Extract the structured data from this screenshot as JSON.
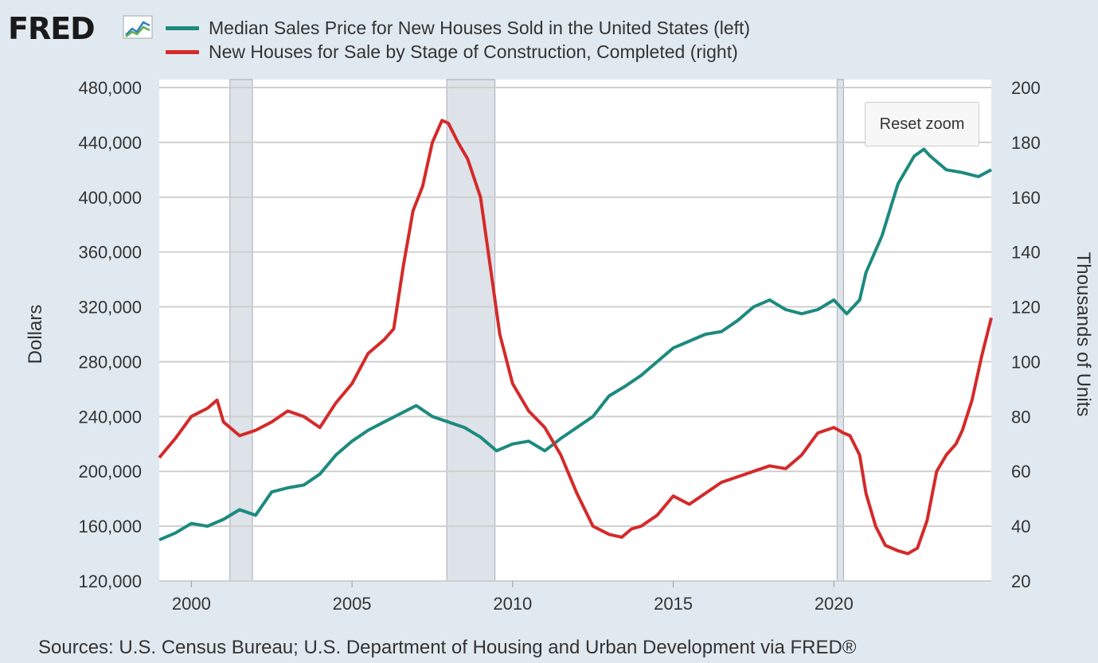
{
  "logo": {
    "text": "FRED",
    "mark": "fred-chart-logo-icon"
  },
  "legend": [
    {
      "label": "Median Sales Price for New Houses Sold in the United States (left)",
      "color": "#1d8a7e"
    },
    {
      "label": "New Houses for Sale by Stage of Construction, Completed (right)",
      "color": "#d42a2a"
    }
  ],
  "reset_zoom_label": "Reset zoom",
  "source": "Sources: U.S. Census Bureau; U.S. Department of Housing and Urban Development via FRED®",
  "chart_data": {
    "type": "line",
    "x_axis": {
      "range": [
        1999.0,
        2024.9
      ],
      "ticks": [
        "2000",
        "2005",
        "2010",
        "2015",
        "2020"
      ]
    },
    "y_left": {
      "label": "Dollars",
      "range": [
        120000,
        480000
      ],
      "ticks": [
        "120,000",
        "160,000",
        "200,000",
        "240,000",
        "280,000",
        "320,000",
        "360,000",
        "400,000",
        "440,000",
        "480,000"
      ]
    },
    "y_right": {
      "label": "Thousands of Units",
      "range": [
        20,
        200
      ],
      "ticks": [
        "20",
        "40",
        "60",
        "80",
        "100",
        "120",
        "140",
        "160",
        "180",
        "200"
      ]
    },
    "recessions": [
      [
        2001.2,
        2001.9
      ],
      [
        2007.95,
        2009.45
      ],
      [
        2020.1,
        2020.3
      ]
    ],
    "grid": true,
    "series": [
      {
        "name": "Median Sales Price for New Houses Sold in the United States (left)",
        "axis": "left",
        "color": "#1d8a7e",
        "points": [
          [
            1999.0,
            150000
          ],
          [
            1999.5,
            155000
          ],
          [
            2000.0,
            162000
          ],
          [
            2000.5,
            160000
          ],
          [
            2001.0,
            165000
          ],
          [
            2001.5,
            172000
          ],
          [
            2002.0,
            168000
          ],
          [
            2002.5,
            185000
          ],
          [
            2003.0,
            188000
          ],
          [
            2003.5,
            190000
          ],
          [
            2004.0,
            198000
          ],
          [
            2004.5,
            212000
          ],
          [
            2005.0,
            222000
          ],
          [
            2005.5,
            230000
          ],
          [
            2006.0,
            236000
          ],
          [
            2006.5,
            242000
          ],
          [
            2007.0,
            248000
          ],
          [
            2007.5,
            240000
          ],
          [
            2008.0,
            236000
          ],
          [
            2008.5,
            232000
          ],
          [
            2009.0,
            225000
          ],
          [
            2009.5,
            215000
          ],
          [
            2010.0,
            220000
          ],
          [
            2010.5,
            222000
          ],
          [
            2011.0,
            215000
          ],
          [
            2011.5,
            224000
          ],
          [
            2012.0,
            232000
          ],
          [
            2012.5,
            240000
          ],
          [
            2013.0,
            255000
          ],
          [
            2013.5,
            262000
          ],
          [
            2014.0,
            270000
          ],
          [
            2014.5,
            280000
          ],
          [
            2015.0,
            290000
          ],
          [
            2015.5,
            295000
          ],
          [
            2016.0,
            300000
          ],
          [
            2016.5,
            302000
          ],
          [
            2017.0,
            310000
          ],
          [
            2017.5,
            320000
          ],
          [
            2018.0,
            325000
          ],
          [
            2018.5,
            318000
          ],
          [
            2019.0,
            315000
          ],
          [
            2019.5,
            318000
          ],
          [
            2020.0,
            325000
          ],
          [
            2020.4,
            315000
          ],
          [
            2020.8,
            325000
          ],
          [
            2021.0,
            345000
          ],
          [
            2021.5,
            372000
          ],
          [
            2021.8,
            395000
          ],
          [
            2022.0,
            410000
          ],
          [
            2022.5,
            430000
          ],
          [
            2022.8,
            435000
          ],
          [
            2023.0,
            430000
          ],
          [
            2023.5,
            420000
          ],
          [
            2024.0,
            418000
          ],
          [
            2024.5,
            415000
          ],
          [
            2024.9,
            420000
          ]
        ]
      },
      {
        "name": "New Houses for Sale by Stage of Construction, Completed (right)",
        "axis": "right",
        "color": "#d42a2a",
        "points": [
          [
            1999.0,
            65
          ],
          [
            1999.5,
            72
          ],
          [
            2000.0,
            80
          ],
          [
            2000.5,
            83
          ],
          [
            2000.8,
            86
          ],
          [
            2001.0,
            78
          ],
          [
            2001.5,
            73
          ],
          [
            2002.0,
            75
          ],
          [
            2002.5,
            78
          ],
          [
            2003.0,
            82
          ],
          [
            2003.5,
            80
          ],
          [
            2004.0,
            76
          ],
          [
            2004.5,
            85
          ],
          [
            2005.0,
            92
          ],
          [
            2005.5,
            103
          ],
          [
            2006.0,
            108
          ],
          [
            2006.3,
            112
          ],
          [
            2006.6,
            135
          ],
          [
            2006.9,
            155
          ],
          [
            2007.2,
            164
          ],
          [
            2007.5,
            180
          ],
          [
            2007.8,
            188
          ],
          [
            2008.0,
            187
          ],
          [
            2008.3,
            180
          ],
          [
            2008.6,
            174
          ],
          [
            2009.0,
            160
          ],
          [
            2009.3,
            135
          ],
          [
            2009.6,
            110
          ],
          [
            2010.0,
            92
          ],
          [
            2010.5,
            82
          ],
          [
            2011.0,
            76
          ],
          [
            2011.5,
            66
          ],
          [
            2012.0,
            52
          ],
          [
            2012.5,
            40
          ],
          [
            2013.0,
            37
          ],
          [
            2013.4,
            36
          ],
          [
            2013.7,
            39
          ],
          [
            2014.0,
            40
          ],
          [
            2014.5,
            44
          ],
          [
            2015.0,
            51
          ],
          [
            2015.5,
            48
          ],
          [
            2016.0,
            52
          ],
          [
            2016.5,
            56
          ],
          [
            2017.0,
            58
          ],
          [
            2017.5,
            60
          ],
          [
            2018.0,
            62
          ],
          [
            2018.5,
            61
          ],
          [
            2019.0,
            66
          ],
          [
            2019.5,
            74
          ],
          [
            2020.0,
            76
          ],
          [
            2020.3,
            74
          ],
          [
            2020.5,
            73
          ],
          [
            2020.8,
            66
          ],
          [
            2021.0,
            52
          ],
          [
            2021.3,
            40
          ],
          [
            2021.6,
            33
          ],
          [
            2022.0,
            31
          ],
          [
            2022.3,
            30
          ],
          [
            2022.6,
            32
          ],
          [
            2022.9,
            42
          ],
          [
            2023.2,
            60
          ],
          [
            2023.5,
            66
          ],
          [
            2023.8,
            70
          ],
          [
            2024.0,
            75
          ],
          [
            2024.3,
            86
          ],
          [
            2024.6,
            102
          ],
          [
            2024.9,
            116
          ]
        ]
      }
    ]
  }
}
